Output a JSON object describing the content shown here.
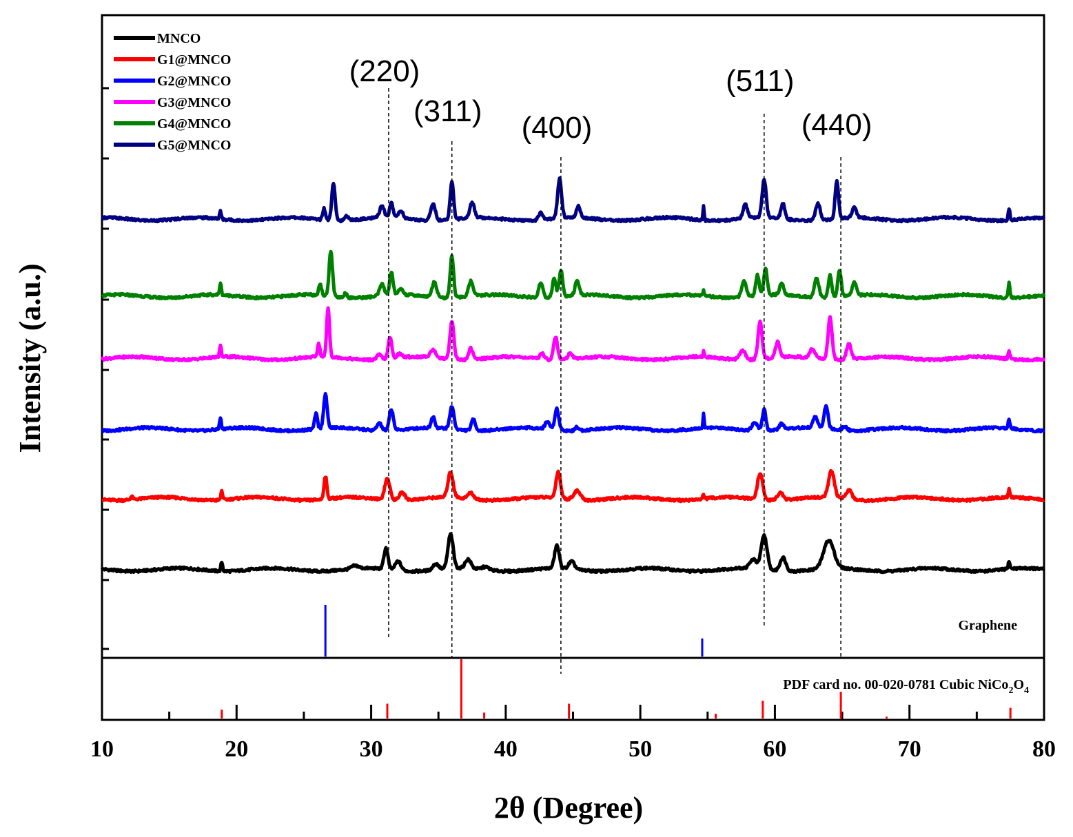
{
  "chart_data": {
    "type": "line",
    "title": "",
    "xlabel": "2θ (Degree)",
    "ylabel": "Intensity (a.u.)",
    "xlim": [
      10,
      80
    ],
    "x_ticks": [
      10,
      20,
      30,
      40,
      50,
      60,
      70,
      80
    ],
    "x_tick_labels": [
      "10",
      "20",
      "30",
      "40",
      "50",
      "60",
      "70",
      "80"
    ],
    "y_ticks_labeled": false,
    "legend_position": "top-left",
    "series": [
      {
        "name": "MNCO",
        "color": "#000000",
        "baseline": 0.0,
        "peaks": [
          {
            "x": 18.9,
            "h": 0.12,
            "w": 0.15
          },
          {
            "x": 28.8,
            "h": 0.04,
            "w": 0.6
          },
          {
            "x": 31.1,
            "h": 0.28,
            "w": 0.35
          },
          {
            "x": 32.0,
            "h": 0.12,
            "w": 0.5
          },
          {
            "x": 34.8,
            "h": 0.08,
            "w": 0.5
          },
          {
            "x": 35.9,
            "h": 0.45,
            "w": 0.45
          },
          {
            "x": 37.2,
            "h": 0.12,
            "w": 0.5
          },
          {
            "x": 38.5,
            "h": 0.04,
            "w": 0.6
          },
          {
            "x": 43.8,
            "h": 0.3,
            "w": 0.4
          },
          {
            "x": 44.9,
            "h": 0.1,
            "w": 0.5
          },
          {
            "x": 58.4,
            "h": 0.12,
            "w": 0.6
          },
          {
            "x": 59.2,
            "h": 0.45,
            "w": 0.5
          },
          {
            "x": 60.6,
            "h": 0.18,
            "w": 0.5
          },
          {
            "x": 64.0,
            "h": 0.37,
            "w": 0.9
          },
          {
            "x": 77.4,
            "h": 0.1,
            "w": 0.15
          }
        ]
      },
      {
        "name": "G1@MNCO",
        "color": "#ff0000",
        "baseline": 1.0,
        "peaks": [
          {
            "x": 12.2,
            "h": 0.04,
            "w": 0.2
          },
          {
            "x": 18.9,
            "h": 0.12,
            "w": 0.15
          },
          {
            "x": 26.6,
            "h": 0.3,
            "w": 0.25
          },
          {
            "x": 31.2,
            "h": 0.28,
            "w": 0.45
          },
          {
            "x": 32.3,
            "h": 0.1,
            "w": 0.5
          },
          {
            "x": 35.9,
            "h": 0.33,
            "w": 0.45
          },
          {
            "x": 37.4,
            "h": 0.08,
            "w": 0.5
          },
          {
            "x": 43.9,
            "h": 0.35,
            "w": 0.4
          },
          {
            "x": 45.3,
            "h": 0.12,
            "w": 0.6
          },
          {
            "x": 54.7,
            "h": 0.06,
            "w": 0.12
          },
          {
            "x": 58.9,
            "h": 0.35,
            "w": 0.45
          },
          {
            "x": 60.4,
            "h": 0.1,
            "w": 0.5
          },
          {
            "x": 64.2,
            "h": 0.35,
            "w": 0.5
          },
          {
            "x": 65.5,
            "h": 0.12,
            "w": 0.5
          },
          {
            "x": 77.4,
            "h": 0.1,
            "w": 0.15
          }
        ]
      },
      {
        "name": "G2@MNCO",
        "color": "#0000ff",
        "baseline": 2.0,
        "peaks": [
          {
            "x": 18.8,
            "h": 0.15,
            "w": 0.15
          },
          {
            "x": 25.9,
            "h": 0.2,
            "w": 0.25
          },
          {
            "x": 26.6,
            "h": 0.45,
            "w": 0.3
          },
          {
            "x": 30.6,
            "h": 0.1,
            "w": 0.4
          },
          {
            "x": 31.5,
            "h": 0.28,
            "w": 0.35
          },
          {
            "x": 34.6,
            "h": 0.15,
            "w": 0.3
          },
          {
            "x": 36.0,
            "h": 0.3,
            "w": 0.35
          },
          {
            "x": 37.6,
            "h": 0.15,
            "w": 0.35
          },
          {
            "x": 43.1,
            "h": 0.1,
            "w": 0.4
          },
          {
            "x": 43.8,
            "h": 0.28,
            "w": 0.35
          },
          {
            "x": 45.3,
            "h": 0.05,
            "w": 0.3
          },
          {
            "x": 54.7,
            "h": 0.18,
            "w": 0.1
          },
          {
            "x": 58.5,
            "h": 0.1,
            "w": 0.5
          },
          {
            "x": 59.2,
            "h": 0.28,
            "w": 0.3
          },
          {
            "x": 60.5,
            "h": 0.08,
            "w": 0.35
          },
          {
            "x": 63.0,
            "h": 0.15,
            "w": 0.4
          },
          {
            "x": 63.8,
            "h": 0.3,
            "w": 0.35
          },
          {
            "x": 65.2,
            "h": 0.05,
            "w": 0.4
          },
          {
            "x": 77.4,
            "h": 0.12,
            "w": 0.15
          }
        ]
      },
      {
        "name": "G3@MNCO",
        "color": "#ff00ff",
        "baseline": 3.0,
        "peaks": [
          {
            "x": 18.8,
            "h": 0.15,
            "w": 0.15
          },
          {
            "x": 26.1,
            "h": 0.18,
            "w": 0.2
          },
          {
            "x": 26.8,
            "h": 0.65,
            "w": 0.25
          },
          {
            "x": 30.6,
            "h": 0.06,
            "w": 0.4
          },
          {
            "x": 31.4,
            "h": 0.28,
            "w": 0.3
          },
          {
            "x": 32.1,
            "h": 0.05,
            "w": 0.4
          },
          {
            "x": 34.6,
            "h": 0.1,
            "w": 0.5
          },
          {
            "x": 36.0,
            "h": 0.5,
            "w": 0.35
          },
          {
            "x": 37.4,
            "h": 0.15,
            "w": 0.35
          },
          {
            "x": 42.7,
            "h": 0.08,
            "w": 0.35
          },
          {
            "x": 43.7,
            "h": 0.3,
            "w": 0.35
          },
          {
            "x": 44.8,
            "h": 0.08,
            "w": 0.4
          },
          {
            "x": 54.7,
            "h": 0.08,
            "w": 0.1
          },
          {
            "x": 57.6,
            "h": 0.12,
            "w": 0.5
          },
          {
            "x": 58.9,
            "h": 0.5,
            "w": 0.35
          },
          {
            "x": 60.2,
            "h": 0.2,
            "w": 0.35
          },
          {
            "x": 62.8,
            "h": 0.12,
            "w": 0.45
          },
          {
            "x": 64.1,
            "h": 0.55,
            "w": 0.35
          },
          {
            "x": 65.5,
            "h": 0.2,
            "w": 0.4
          },
          {
            "x": 77.4,
            "h": 0.1,
            "w": 0.15
          }
        ]
      },
      {
        "name": "G4@MNCO",
        "color": "#008000",
        "baseline": 4.0,
        "peaks": [
          {
            "x": 18.8,
            "h": 0.16,
            "w": 0.15
          },
          {
            "x": 26.2,
            "h": 0.15,
            "w": 0.25
          },
          {
            "x": 27.0,
            "h": 0.6,
            "w": 0.3
          },
          {
            "x": 28.1,
            "h": 0.06,
            "w": 0.25
          },
          {
            "x": 30.8,
            "h": 0.15,
            "w": 0.4
          },
          {
            "x": 31.5,
            "h": 0.3,
            "w": 0.3
          },
          {
            "x": 32.2,
            "h": 0.08,
            "w": 0.4
          },
          {
            "x": 34.7,
            "h": 0.2,
            "w": 0.4
          },
          {
            "x": 36.0,
            "h": 0.55,
            "w": 0.3
          },
          {
            "x": 37.4,
            "h": 0.2,
            "w": 0.4
          },
          {
            "x": 42.6,
            "h": 0.2,
            "w": 0.35
          },
          {
            "x": 43.6,
            "h": 0.25,
            "w": 0.3
          },
          {
            "x": 44.1,
            "h": 0.35,
            "w": 0.3
          },
          {
            "x": 45.3,
            "h": 0.18,
            "w": 0.35
          },
          {
            "x": 54.7,
            "h": 0.08,
            "w": 0.1
          },
          {
            "x": 57.7,
            "h": 0.22,
            "w": 0.4
          },
          {
            "x": 58.7,
            "h": 0.28,
            "w": 0.3
          },
          {
            "x": 59.3,
            "h": 0.35,
            "w": 0.3
          },
          {
            "x": 60.5,
            "h": 0.15,
            "w": 0.35
          },
          {
            "x": 63.1,
            "h": 0.25,
            "w": 0.4
          },
          {
            "x": 64.1,
            "h": 0.3,
            "w": 0.3
          },
          {
            "x": 64.8,
            "h": 0.35,
            "w": 0.3
          },
          {
            "x": 65.9,
            "h": 0.18,
            "w": 0.35
          },
          {
            "x": 77.4,
            "h": 0.2,
            "w": 0.15
          }
        ]
      },
      {
        "name": "G5@MNCO",
        "color": "#000080",
        "baseline": 5.0,
        "peaks": [
          {
            "x": 18.8,
            "h": 0.1,
            "w": 0.15
          },
          {
            "x": 26.5,
            "h": 0.15,
            "w": 0.25
          },
          {
            "x": 27.2,
            "h": 0.5,
            "w": 0.3
          },
          {
            "x": 28.2,
            "h": 0.06,
            "w": 0.3
          },
          {
            "x": 30.8,
            "h": 0.15,
            "w": 0.4
          },
          {
            "x": 31.5,
            "h": 0.2,
            "w": 0.3
          },
          {
            "x": 32.2,
            "h": 0.1,
            "w": 0.4
          },
          {
            "x": 34.6,
            "h": 0.22,
            "w": 0.4
          },
          {
            "x": 36.0,
            "h": 0.5,
            "w": 0.3
          },
          {
            "x": 37.5,
            "h": 0.2,
            "w": 0.4
          },
          {
            "x": 42.6,
            "h": 0.1,
            "w": 0.35
          },
          {
            "x": 44.0,
            "h": 0.52,
            "w": 0.35
          },
          {
            "x": 45.4,
            "h": 0.15,
            "w": 0.35
          },
          {
            "x": 54.7,
            "h": 0.18,
            "w": 0.1
          },
          {
            "x": 57.8,
            "h": 0.18,
            "w": 0.4
          },
          {
            "x": 59.2,
            "h": 0.5,
            "w": 0.35
          },
          {
            "x": 60.6,
            "h": 0.2,
            "w": 0.35
          },
          {
            "x": 63.2,
            "h": 0.22,
            "w": 0.4
          },
          {
            "x": 64.6,
            "h": 0.5,
            "w": 0.3
          },
          {
            "x": 65.9,
            "h": 0.15,
            "w": 0.35
          },
          {
            "x": 77.4,
            "h": 0.15,
            "w": 0.15
          }
        ]
      }
    ],
    "reference_markers": [
      {
        "x": 31.3,
        "label": "(220)"
      },
      {
        "x": 36.0,
        "label": "(311)"
      },
      {
        "x": 44.1,
        "label": "(400)"
      },
      {
        "x": 59.2,
        "label": "(511)"
      },
      {
        "x": 64.9,
        "label": "(440)"
      }
    ],
    "graphene_reference": {
      "label": "Graphene",
      "color": "#0000ff",
      "lines": [
        {
          "x": 26.6,
          "intensity": 1.0
        },
        {
          "x": 54.6,
          "intensity": 0.35
        }
      ]
    },
    "pdf_reference": {
      "label_prefix": "PDF card no. 00-020-0781 Cubic NiCo",
      "label_sub1": "2",
      "label_mid": "O",
      "label_sub2": "4",
      "color": "#ff0000",
      "lines": [
        {
          "x": 18.9,
          "intensity": 0.15
        },
        {
          "x": 31.2,
          "intensity": 0.25
        },
        {
          "x": 36.7,
          "intensity": 1.0
        },
        {
          "x": 38.4,
          "intensity": 0.1
        },
        {
          "x": 44.7,
          "intensity": 0.25
        },
        {
          "x": 55.6,
          "intensity": 0.08
        },
        {
          "x": 59.1,
          "intensity": 0.3
        },
        {
          "x": 64.9,
          "intensity": 0.45
        },
        {
          "x": 68.3,
          "intensity": 0.03
        },
        {
          "x": 77.5,
          "intensity": 0.18
        }
      ]
    }
  }
}
